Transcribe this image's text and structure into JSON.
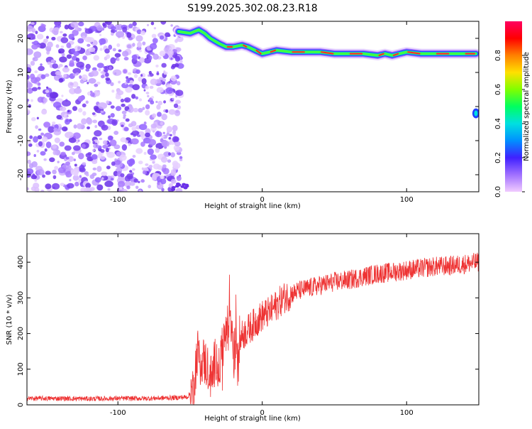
{
  "page": {
    "title": "S199.2025.302.08.23.R18"
  },
  "chart_data": [
    {
      "type": "heatmap",
      "title": "S199.2025.302.08.23.R18",
      "xlabel": "Height of straight line (km)",
      "ylabel": "Frequency (Hz)",
      "xlim": [
        -163,
        150
      ],
      "ylim": [
        -25,
        25
      ],
      "x_ticks": [
        -100,
        0,
        100
      ],
      "y_ticks": [
        -20,
        -10,
        0,
        10,
        20
      ],
      "colorbar": {
        "label": "Normalized spectral amplitude",
        "range": [
          0,
          1
        ],
        "ticks": [
          "0.0",
          "0.2",
          "0.4",
          "0.6",
          "0.8"
        ],
        "colors": [
          "#f2ccff",
          "#a070ff",
          "#4020ff",
          "#0090ff",
          "#00e0e0",
          "#00ff60",
          "#80ff00",
          "#ffe000",
          "#ff8000",
          "#ff0000",
          "#ff0060"
        ]
      },
      "features": {
        "noise_region_x": [
          -163,
          -60
        ],
        "ridge": {
          "x": [
            -58,
            -50,
            -44,
            -40,
            -36,
            -30,
            -25,
            -20,
            -14,
            -10,
            -5,
            0,
            5,
            10,
            20,
            30,
            40,
            50,
            60,
            70,
            80,
            85,
            90,
            95,
            100,
            110,
            120,
            130,
            140,
            148
          ],
          "y": [
            22,
            21.5,
            22.5,
            21.5,
            20,
            18.5,
            17.5,
            17.5,
            18,
            17.5,
            16.5,
            15.5,
            16,
            16.5,
            16,
            16,
            16,
            15.5,
            15.5,
            15.5,
            15,
            15.5,
            15,
            15.5,
            16,
            15.5,
            15.5,
            15.5,
            15.5,
            15.5
          ]
        },
        "spot": {
          "x": 148,
          "y": -2
        }
      }
    },
    {
      "type": "line",
      "xlabel": "Height of straight line (km)",
      "ylabel": "SNR (10 * v/v)",
      "xlim": [
        -163,
        150
      ],
      "ylim": [
        0,
        480
      ],
      "x_ticks": [
        -100,
        0,
        100
      ],
      "y_ticks": [
        0,
        100,
        200,
        300,
        400
      ],
      "color": "#ee3333",
      "series": [
        {
          "x": [
            -163,
            -140,
            -120,
            -100,
            -80,
            -60,
            -52,
            -48,
            -45,
            -42,
            -38,
            -35,
            -32,
            -30,
            -28,
            -25,
            -22,
            -20,
            -18,
            -15,
            -10,
            -5,
            0,
            5,
            10,
            15,
            20,
            25,
            30,
            40,
            50,
            60,
            70,
            80,
            90,
            100,
            110,
            120,
            130,
            140,
            150
          ],
          "values": [
            18,
            18,
            17,
            18,
            18,
            20,
            22,
            40,
            150,
            130,
            110,
            70,
            140,
            90,
            160,
            200,
            230,
            140,
            160,
            190,
            210,
            230,
            250,
            260,
            280,
            300,
            310,
            320,
            325,
            335,
            345,
            350,
            360,
            368,
            372,
            378,
            383,
            388,
            390,
            395,
            400
          ]
        }
      ]
    }
  ]
}
